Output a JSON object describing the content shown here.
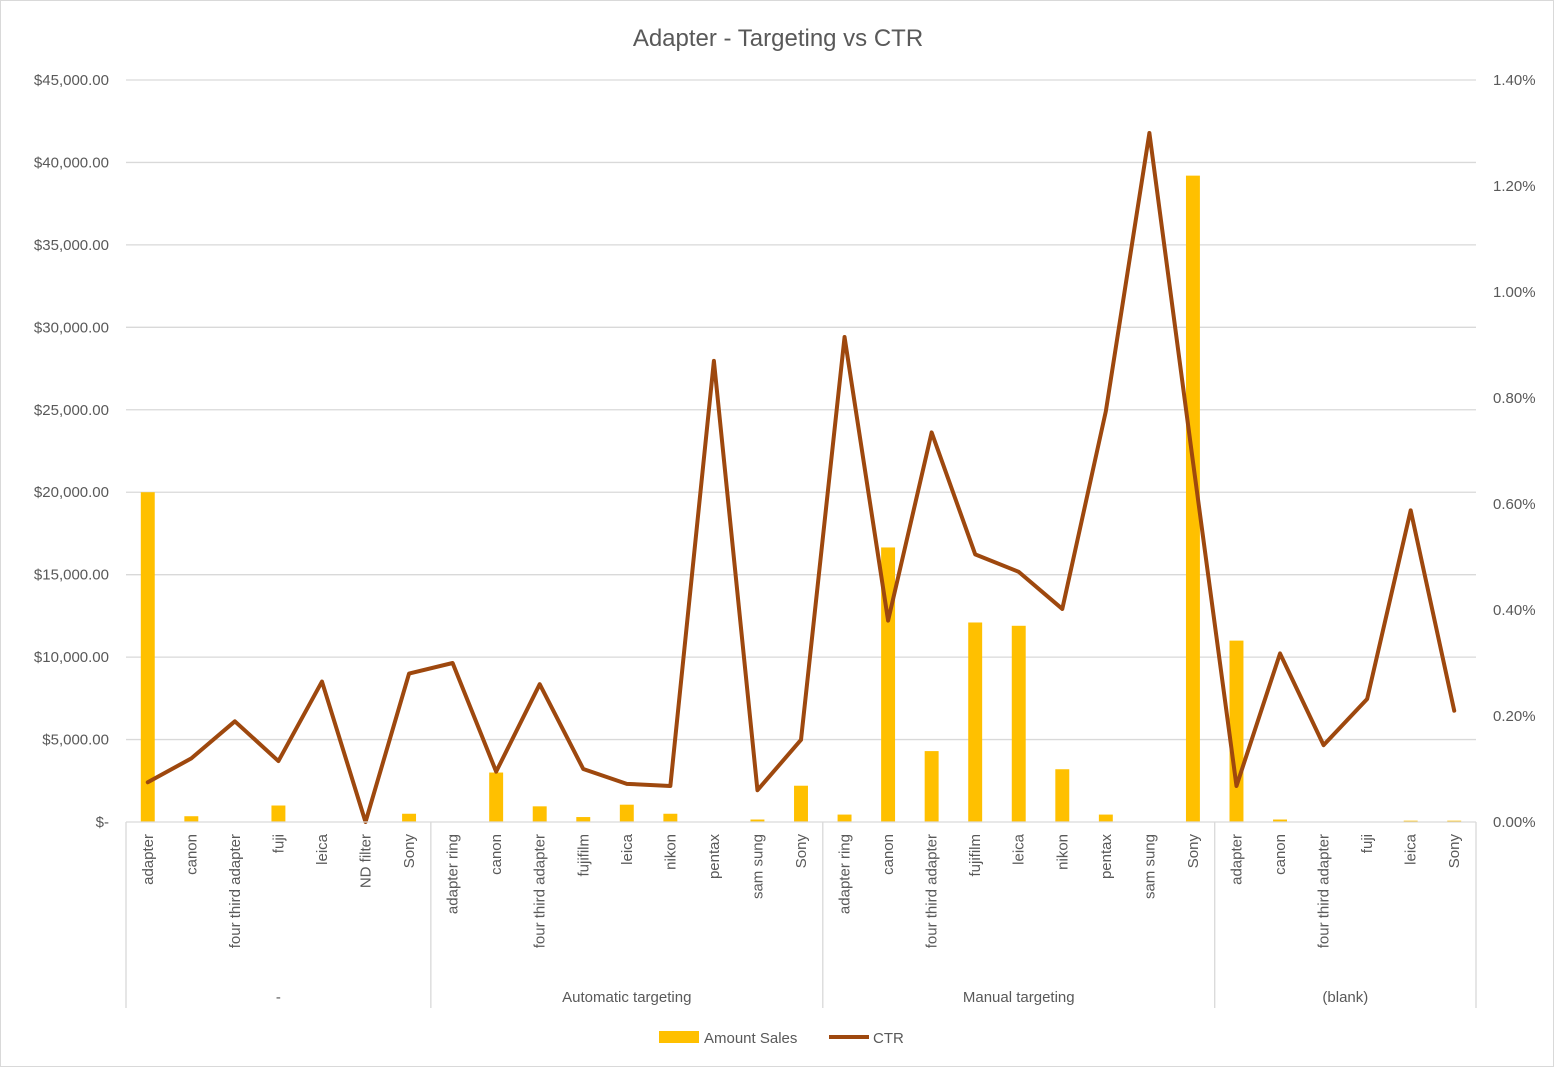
{
  "chart_data": {
    "type": "bar",
    "title": "Adapter - Targeting vs CTR",
    "groups": [
      {
        "label": "-",
        "categories": [
          "adapter",
          "canon",
          "four third adapter",
          "fuji",
          "leica",
          "ND filter",
          "Sony"
        ]
      },
      {
        "label": "Automatic targeting",
        "categories": [
          "adapter ring",
          "canon",
          "four third adapter",
          "fujifilm",
          "leica",
          "nikon",
          "pentax",
          "sam sung",
          "Sony"
        ]
      },
      {
        "label": "Manual targeting",
        "categories": [
          "adapter ring",
          "canon",
          "four third adapter",
          "fujifilm",
          "leica",
          "nikon",
          "pentax",
          "sam sung",
          "Sony"
        ]
      },
      {
        "label": "(blank)",
        "categories": [
          "adapter",
          "canon",
          "four third adapter",
          "fuji",
          "leica",
          "Sony"
        ]
      }
    ],
    "series": [
      {
        "name": "Amount Sales",
        "type": "bar",
        "axis": "left",
        "color": "#FFC000",
        "values": [
          20000,
          350,
          0,
          1000,
          0,
          0,
          500,
          0,
          3000,
          950,
          300,
          1050,
          500,
          0,
          150,
          2200,
          450,
          16650,
          4300,
          12100,
          11900,
          3200,
          450,
          0,
          39200,
          11000,
          150,
          0,
          0,
          80,
          80
        ]
      },
      {
        "name": "CTR",
        "type": "line",
        "axis": "right",
        "color": "#9E480E",
        "values": [
          0.075,
          0.12,
          0.19,
          0.115,
          0.265,
          0.0,
          0.28,
          0.3,
          0.095,
          0.26,
          0.1,
          0.072,
          0.068,
          0.87,
          0.06,
          0.155,
          0.915,
          0.38,
          0.735,
          0.505,
          0.472,
          0.402,
          0.775,
          1.3,
          0.68,
          0.068,
          0.318,
          0.145,
          0.232,
          0.588,
          0.21
        ]
      }
    ],
    "y_left": {
      "min": 0,
      "max": 45000,
      "ticks": [
        "$-",
        "$5,000.00",
        "$10,000.00",
        "$15,000.00",
        "$20,000.00",
        "$25,000.00",
        "$30,000.00",
        "$35,000.00",
        "$40,000.00",
        "$45,000.00"
      ]
    },
    "y_right": {
      "min": 0,
      "max": 1.4,
      "unit": "%",
      "ticks": [
        "0.00%",
        "0.20%",
        "0.40%",
        "0.60%",
        "0.80%",
        "1.00%",
        "1.20%",
        "1.40%"
      ]
    },
    "grid": true,
    "legend": {
      "position": "bottom",
      "entries": [
        "Amount Sales",
        "CTR"
      ]
    }
  }
}
